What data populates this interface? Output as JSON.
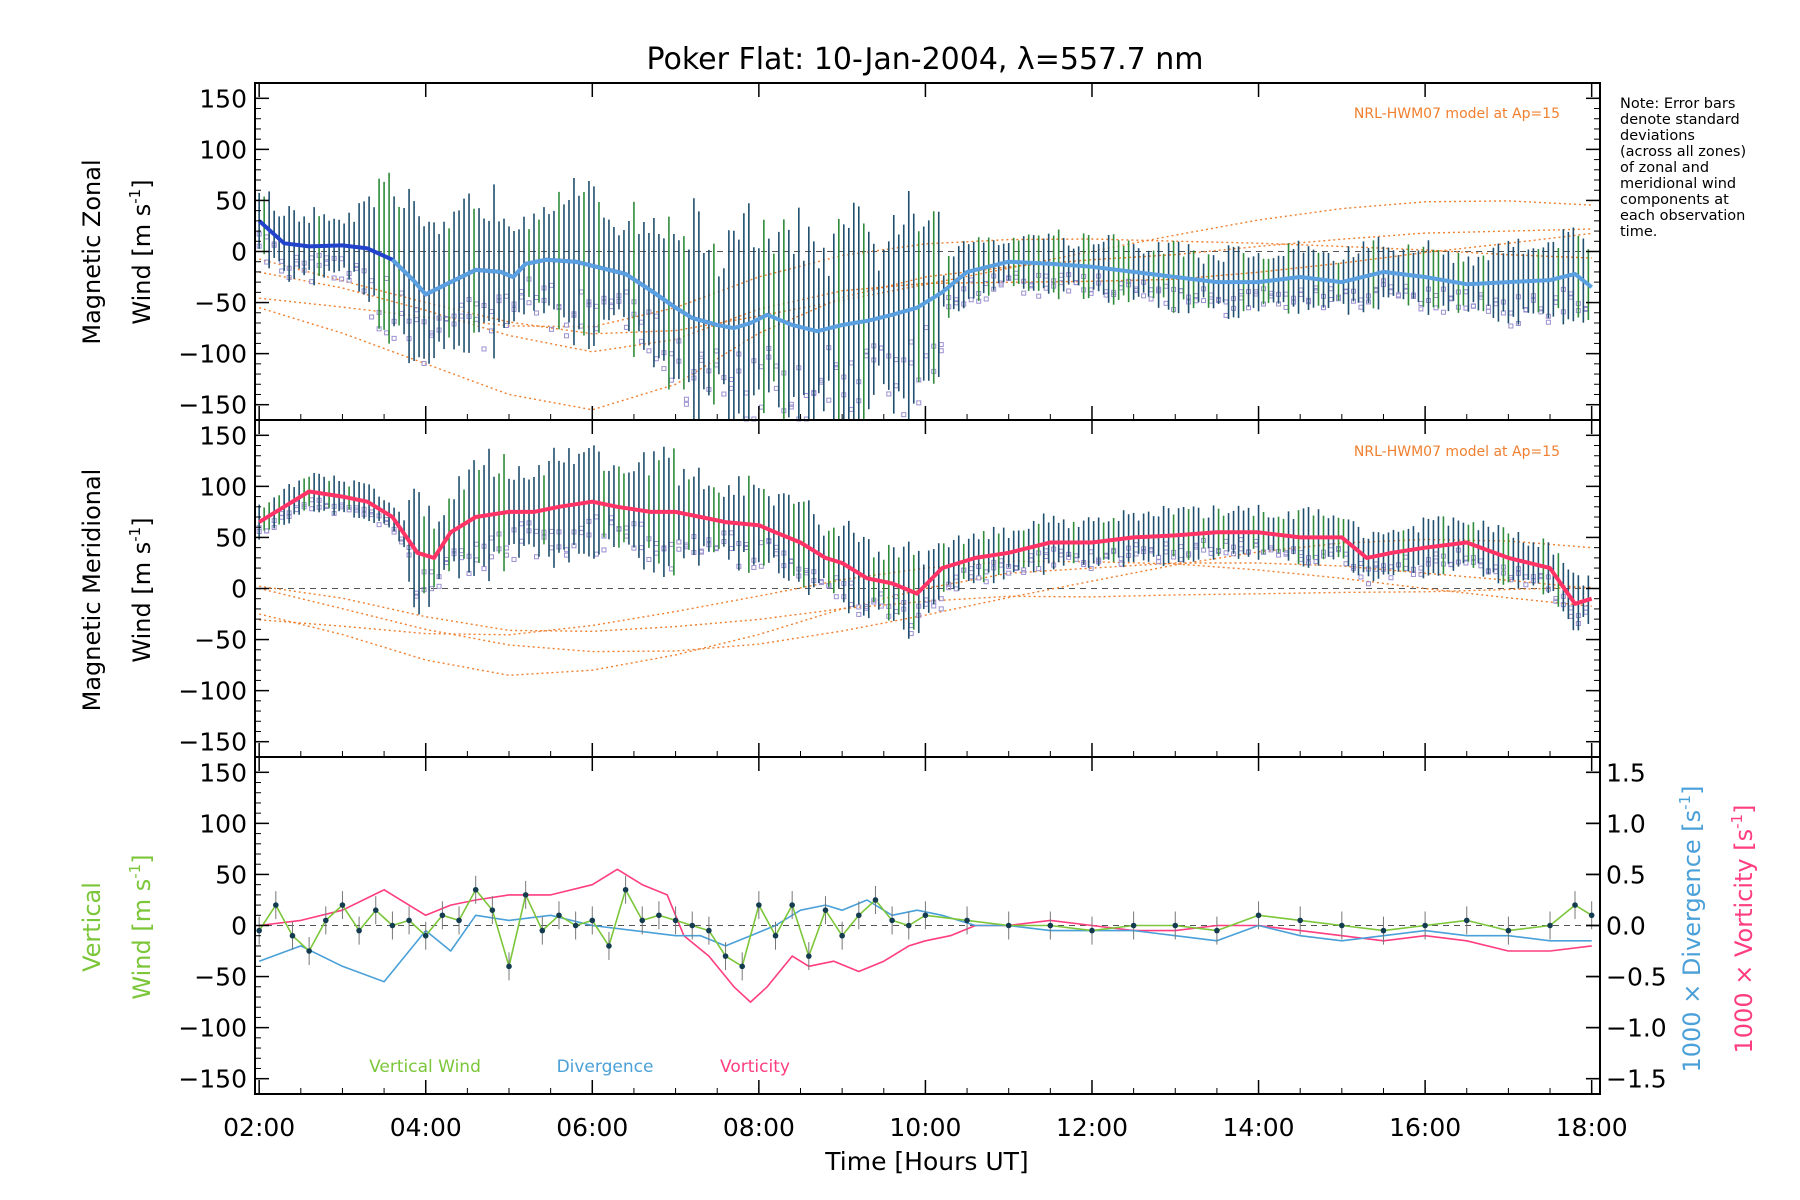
{
  "chart_data": [
    {
      "type": "line",
      "panel": "zonal",
      "title": "Poker Flat: 10-Jan-2004, λ=557.7 nm",
      "ylabel_line1": "Magnetic Zonal",
      "ylabel_line2": "Wind [m s",
      "ylabel_sup": "-1",
      "ylabel_end": "]",
      "ylim": [
        -165,
        165
      ],
      "yticks": [
        "150",
        "100",
        "50",
        "0",
        "−50",
        "−100",
        "−150"
      ],
      "model_label": "NRL-HWM07 model at Ap=15",
      "series": [
        {
          "name": "Zonal wind (mean)",
          "x": [
            2.0,
            2.3,
            2.6,
            3.0,
            3.3,
            3.6,
            3.85,
            4.0,
            4.3,
            4.6,
            4.9,
            5.05,
            5.2,
            5.45,
            5.8,
            6.1,
            6.4,
            6.7,
            7.0,
            7.2,
            7.5,
            7.7,
            7.9,
            8.1,
            8.4,
            8.7,
            9.0,
            9.3,
            9.6,
            9.9,
            10.2,
            10.5,
            11.0,
            11.5,
            12.0,
            12.5,
            13.0,
            13.5,
            14.0,
            14.5,
            15.0,
            15.5,
            16.0,
            16.5,
            17.0,
            17.5,
            17.8,
            18.0
          ],
          "y": [
            30,
            8,
            5,
            6,
            3,
            -8,
            -28,
            -42,
            -30,
            -18,
            -20,
            -25,
            -12,
            -8,
            -10,
            -16,
            -22,
            -38,
            -55,
            -65,
            -72,
            -75,
            -70,
            -62,
            -72,
            -78,
            -72,
            -68,
            -62,
            -55,
            -40,
            -20,
            -10,
            -12,
            -15,
            -20,
            -25,
            -30,
            -30,
            -25,
            -30,
            -20,
            -25,
            -32,
            -30,
            -28,
            -22,
            -35
          ]
        },
        {
          "name": "NRL-HWM07 model",
          "x": [
            2.0,
            3.0,
            4.0,
            5.0,
            6.0,
            7.0,
            8.0,
            9.0,
            10.0,
            11.0,
            12.0,
            13.0,
            14.0,
            15.0,
            16.0,
            17.0,
            18.0
          ],
          "y": [
            -55,
            -80,
            -110,
            -140,
            -155,
            -130,
            -80,
            -45,
            -25,
            -15,
            -8,
            -3,
            5,
            12,
            18,
            20,
            22
          ]
        }
      ]
    },
    {
      "type": "line",
      "panel": "meridional",
      "ylabel_line1": "Magnetic Meridional",
      "ylabel_line2": "Wind [m s",
      "ylabel_sup": "-1",
      "ylabel_end": "]",
      "ylim": [
        -165,
        165
      ],
      "yticks": [
        "150",
        "100",
        "50",
        "0",
        "−50",
        "−100",
        "−150"
      ],
      "model_label": "NRL-HWM07 model at Ap=15",
      "series": [
        {
          "name": "Meridional wind (mean)",
          "x": [
            2.0,
            2.3,
            2.6,
            3.0,
            3.3,
            3.6,
            3.9,
            4.1,
            4.3,
            4.6,
            5.0,
            5.3,
            5.6,
            6.0,
            6.3,
            6.7,
            7.0,
            7.3,
            7.6,
            8.0,
            8.2,
            8.5,
            8.8,
            9.0,
            9.3,
            9.6,
            9.9,
            10.2,
            10.6,
            11.0,
            11.5,
            12.0,
            12.5,
            13.0,
            13.5,
            14.0,
            14.5,
            15.0,
            15.3,
            15.6,
            16.0,
            16.5,
            17.0,
            17.5,
            17.8,
            18.0
          ],
          "y": [
            65,
            80,
            95,
            90,
            85,
            70,
            35,
            30,
            55,
            70,
            75,
            75,
            80,
            85,
            80,
            75,
            75,
            70,
            65,
            62,
            55,
            45,
            30,
            25,
            10,
            5,
            -5,
            20,
            30,
            35,
            45,
            45,
            50,
            52,
            55,
            55,
            50,
            50,
            30,
            35,
            40,
            45,
            30,
            20,
            -15,
            -10
          ]
        },
        {
          "name": "NRL-HWM07 model",
          "x": [
            2.0,
            3.0,
            4.0,
            5.0,
            6.0,
            7.0,
            8.0,
            9.0,
            10.0,
            11.0,
            12.0,
            13.0,
            14.0,
            15.0,
            16.0,
            17.0,
            18.0
          ],
          "y": [
            -25,
            -45,
            -70,
            -85,
            -80,
            -65,
            -45,
            -20,
            0,
            15,
            20,
            25,
            25,
            22,
            15,
            8,
            0
          ]
        }
      ]
    },
    {
      "type": "line",
      "panel": "vertical",
      "ylabel_line1": "Vertical",
      "ylabel_line2": "Wind [m s",
      "ylabel_sup": "-1",
      "ylabel_end": "]",
      "ylim": [
        -165,
        165
      ],
      "yticks": [
        "150",
        "100",
        "50",
        "0",
        "−50",
        "−100",
        "−150"
      ],
      "y2ticks": [
        "1.5",
        "1.0",
        "0.5",
        "0.0",
        "−0.5",
        "−1.0",
        "−1.5"
      ],
      "y2label_div": "1000 × Divergence [s",
      "y2label_vort": "1000 × Vorticity [s",
      "y2label_sup": "-1",
      "y2label_end": "]",
      "xticks": [
        "02:00",
        "04:00",
        "06:00",
        "08:00",
        "10:00",
        "12:00",
        "14:00",
        "16:00",
        "18:00"
      ],
      "xlabel": "Time [Hours UT]",
      "xlim": [
        1.95,
        18.1
      ],
      "legend": [
        "Vertical Wind",
        "Divergence",
        "Vorticity"
      ],
      "series": [
        {
          "name": "Vertical Wind",
          "x": [
            2.0,
            2.2,
            2.4,
            2.6,
            2.8,
            3.0,
            3.2,
            3.4,
            3.6,
            3.8,
            4.0,
            4.2,
            4.4,
            4.6,
            4.8,
            5.0,
            5.2,
            5.4,
            5.6,
            5.8,
            6.0,
            6.2,
            6.4,
            6.6,
            6.8,
            7.0,
            7.2,
            7.4,
            7.6,
            7.8,
            8.0,
            8.2,
            8.4,
            8.6,
            8.8,
            9.0,
            9.2,
            9.4,
            9.6,
            9.8,
            10.0,
            10.5,
            11.0,
            11.5,
            12.0,
            12.5,
            13.0,
            13.5,
            14.0,
            14.5,
            15.0,
            15.5,
            16.0,
            16.5,
            17.0,
            17.5,
            17.8,
            18.0
          ],
          "y": [
            -5,
            20,
            -10,
            -25,
            5,
            20,
            -5,
            15,
            0,
            5,
            -10,
            10,
            5,
            35,
            15,
            -40,
            30,
            -5,
            10,
            0,
            5,
            -20,
            35,
            5,
            10,
            5,
            0,
            -5,
            -30,
            -40,
            20,
            -10,
            20,
            -30,
            15,
            -10,
            10,
            25,
            5,
            0,
            10,
            5,
            0,
            0,
            -5,
            0,
            0,
            -5,
            10,
            5,
            0,
            -5,
            0,
            5,
            -5,
            0,
            20,
            10
          ]
        },
        {
          "name": "Divergence",
          "x": [
            2.0,
            2.5,
            3.0,
            3.5,
            4.0,
            4.3,
            4.6,
            5.0,
            5.5,
            6.0,
            6.5,
            7.0,
            7.3,
            7.6,
            7.9,
            8.2,
            8.5,
            8.8,
            9.0,
            9.3,
            9.6,
            9.9,
            10.2,
            10.6,
            11.0,
            11.5,
            12.0,
            12.5,
            13.0,
            13.5,
            14.0,
            14.5,
            15.0,
            15.5,
            16.0,
            16.5,
            17.0,
            17.5,
            18.0
          ],
          "y": [
            -0.35,
            -0.2,
            -0.4,
            -0.55,
            -0.05,
            -0.25,
            0.1,
            0.05,
            0.1,
            0.0,
            -0.05,
            -0.1,
            -0.1,
            -0.2,
            -0.1,
            0.0,
            0.15,
            0.2,
            0.15,
            0.25,
            0.1,
            0.15,
            0.1,
            0.0,
            0.0,
            -0.05,
            -0.05,
            -0.05,
            -0.1,
            -0.15,
            0.0,
            -0.1,
            -0.15,
            -0.1,
            -0.05,
            -0.1,
            -0.1,
            -0.15,
            -0.15
          ]
        },
        {
          "name": "Vorticity",
          "x": [
            2.0,
            2.5,
            3.0,
            3.5,
            4.0,
            4.3,
            4.6,
            5.0,
            5.5,
            6.0,
            6.3,
            6.6,
            6.9,
            7.1,
            7.4,
            7.7,
            7.9,
            8.1,
            8.4,
            8.6,
            8.9,
            9.2,
            9.5,
            9.8,
            10.0,
            10.3,
            10.6,
            11.0,
            11.5,
            12.0,
            12.5,
            13.0,
            13.5,
            14.0,
            14.5,
            15.0,
            15.5,
            16.0,
            16.5,
            17.0,
            17.5,
            18.0
          ],
          "y": [
            0.0,
            0.05,
            0.15,
            0.35,
            0.1,
            0.2,
            0.25,
            0.3,
            0.3,
            0.4,
            0.55,
            0.4,
            0.3,
            -0.1,
            -0.3,
            -0.6,
            -0.75,
            -0.6,
            -0.3,
            -0.4,
            -0.35,
            -0.45,
            -0.35,
            -0.2,
            -0.15,
            -0.1,
            0.0,
            0.0,
            0.05,
            0.0,
            -0.05,
            -0.05,
            0.0,
            0.0,
            -0.05,
            -0.1,
            -0.15,
            -0.1,
            -0.15,
            -0.25,
            -0.25,
            -0.2
          ]
        }
      ]
    }
  ],
  "note_lines": [
    "Note: Error bars",
    "denote standard",
    "deviations",
    "(across all zones)",
    "of zonal and",
    "meridional wind",
    "components at",
    "each observation",
    "time."
  ],
  "colors": {
    "zonal_mean": "#5aa0e0",
    "zonal_mean_early": "#2244cc",
    "meridional_mean": "#ff3366",
    "errorbar": "#1f4f6e",
    "errorbar_green": "#2e8b3a",
    "zone_points": "#9a90d0",
    "model": "#f08030",
    "vertical": "#7cc63a",
    "divergence": "#4aa0d8",
    "vorticity": "#ff3d80",
    "vertical_points": "#143c50"
  }
}
